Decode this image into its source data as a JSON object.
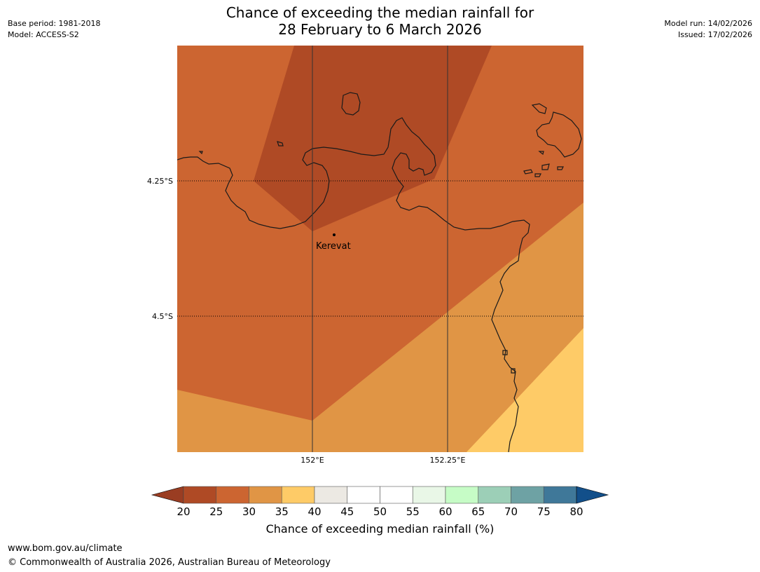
{
  "header": {
    "title_line1": "Chance of exceeding the median rainfall for",
    "title_line2": "28 February to 6 March 2026",
    "base_period": "Base period: 1981-2018",
    "model": "Model: ACCESS-S2",
    "model_run": "Model run: 14/02/2026",
    "issued": "Issued: 17/02/2026"
  },
  "map": {
    "lat_labels": [
      "4.25°S",
      "4.5°S"
    ],
    "lon_labels": [
      "152°E",
      "152.25°E"
    ],
    "place": "Kerevat"
  },
  "colorbar": {
    "title": "Chance of exceeding median rainfall (%)",
    "ticks": [
      "20",
      "25",
      "30",
      "35",
      "40",
      "45",
      "50",
      "55",
      "60",
      "65",
      "70",
      "75",
      "80"
    ],
    "under_color": "#9a3d22",
    "over_color": "#124f8a",
    "colors": [
      "#af4a25",
      "#cc6531",
      "#e09545",
      "#fecb67",
      "#ece9e3",
      "#ffffff",
      "#ffffff",
      "#e9f7e7",
      "#c6fcc6",
      "#9ccfb7",
      "#6ea2a4",
      "#3f7899"
    ]
  },
  "map_colors": {
    "c20_25": "#af4a25",
    "c25_30": "#cc6531",
    "c30_35": "#e09545",
    "c35_40": "#fecb67"
  },
  "footer": {
    "url": "www.bom.gov.au/climate",
    "copyright": "© Commonwealth of Australia 2026, Australian Bureau of Meteorology"
  }
}
